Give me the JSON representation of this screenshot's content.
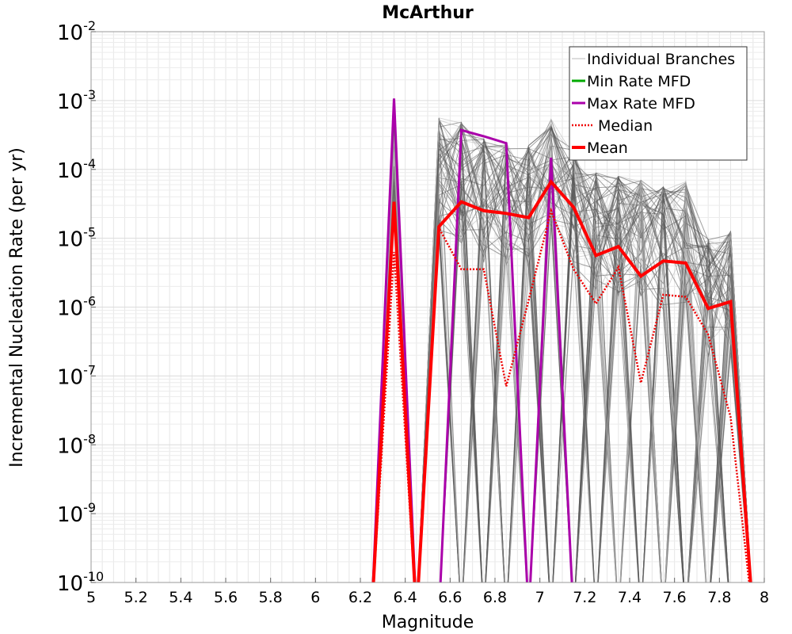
{
  "chart_data": {
    "type": "line",
    "title": "McArthur",
    "xlabel": "Magnitude",
    "ylabel": "Incremental Nucleation Rate (per yr)",
    "xlim": [
      5,
      8
    ],
    "ylim_log10": [
      -10,
      -2
    ],
    "y_scale": "log",
    "x_ticks": [
      "5",
      "5.2",
      "5.4",
      "5.6",
      "5.8",
      "6",
      "6.2",
      "6.4",
      "6.6",
      "6.8",
      "7",
      "7.2",
      "7.4",
      "7.6",
      "7.8",
      "8"
    ],
    "y_ticks": [
      {
        "base": "10",
        "exp": "-10"
      },
      {
        "base": "10",
        "exp": "-9"
      },
      {
        "base": "10",
        "exp": "-8"
      },
      {
        "base": "10",
        "exp": "-7"
      },
      {
        "base": "10",
        "exp": "-6"
      },
      {
        "base": "10",
        "exp": "-5"
      },
      {
        "base": "10",
        "exp": "-4"
      },
      {
        "base": "10",
        "exp": "-3"
      },
      {
        "base": "10",
        "exp": "-2"
      }
    ],
    "grid": true,
    "legend_position": "top-right",
    "legend": [
      {
        "label": "Individual Branches",
        "color": "#bbbbbb",
        "style": "solid-thin"
      },
      {
        "label": "Min Rate MFD",
        "color": "#00aa00",
        "style": "solid"
      },
      {
        "label": "Max Rate MFD",
        "color": "#aa00aa",
        "style": "solid"
      },
      {
        "label": "Median",
        "color": "#ee0000",
        "style": "dotted"
      },
      {
        "label": "Mean",
        "color": "#ff0000",
        "style": "solid-thick"
      }
    ],
    "series": [
      {
        "name": "Max Rate MFD",
        "color": "#aa00aa",
        "x": [
          6.25,
          6.35,
          6.45,
          6.55,
          6.65,
          6.75,
          6.85,
          6.95,
          7.05,
          7.15
        ],
        "log10_y": [
          -10.5,
          -2.97,
          -10.5,
          -10.5,
          -3.43,
          -3.52,
          -3.62,
          -10.5,
          -3.83,
          -10.5
        ]
      },
      {
        "name": "Mean",
        "color": "#ff0000",
        "x": [
          6.25,
          6.35,
          6.45,
          6.55,
          6.65,
          6.75,
          6.85,
          6.95,
          7.05,
          7.15,
          7.25,
          7.35,
          7.45,
          7.55,
          7.65,
          7.75,
          7.85,
          7.95
        ],
        "log10_y": [
          -10.5,
          -4.47,
          -10.5,
          -4.83,
          -4.47,
          -4.6,
          -4.64,
          -4.7,
          -4.18,
          -4.55,
          -5.25,
          -5.12,
          -5.55,
          -5.33,
          -5.36,
          -6.02,
          -5.92,
          -10.5
        ]
      },
      {
        "name": "Median",
        "color": "#ee0000",
        "x": [
          6.25,
          6.35,
          6.45,
          6.55,
          6.65,
          6.75,
          6.85,
          6.95,
          7.05,
          7.15,
          7.25,
          7.35,
          7.45,
          7.55,
          7.65,
          7.75,
          7.85,
          7.95
        ],
        "log10_y": [
          -10.5,
          -5.2,
          -10.5,
          -4.85,
          -5.45,
          -5.45,
          -7.15,
          -5.9,
          -4.6,
          -5.45,
          -5.95,
          -5.42,
          -7.1,
          -5.82,
          -5.85,
          -6.4,
          -7.6,
          -10.5
        ]
      }
    ],
    "individual_branches": {
      "count": 90,
      "color": "#555555",
      "x": [
        6.25,
        6.35,
        6.45,
        6.55,
        6.65,
        6.75,
        6.85,
        6.95,
        7.05,
        7.15,
        7.25,
        7.35,
        7.45,
        7.55,
        7.65,
        7.75,
        7.85,
        7.95
      ],
      "log10_y_max": [
        -10.5,
        -3.0,
        -10.5,
        -3.25,
        -3.3,
        -3.55,
        -3.6,
        -3.65,
        -3.25,
        -3.7,
        -4.05,
        -4.1,
        -4.15,
        -4.25,
        -4.15,
        -5.0,
        -4.9,
        -10.5
      ]
    }
  }
}
